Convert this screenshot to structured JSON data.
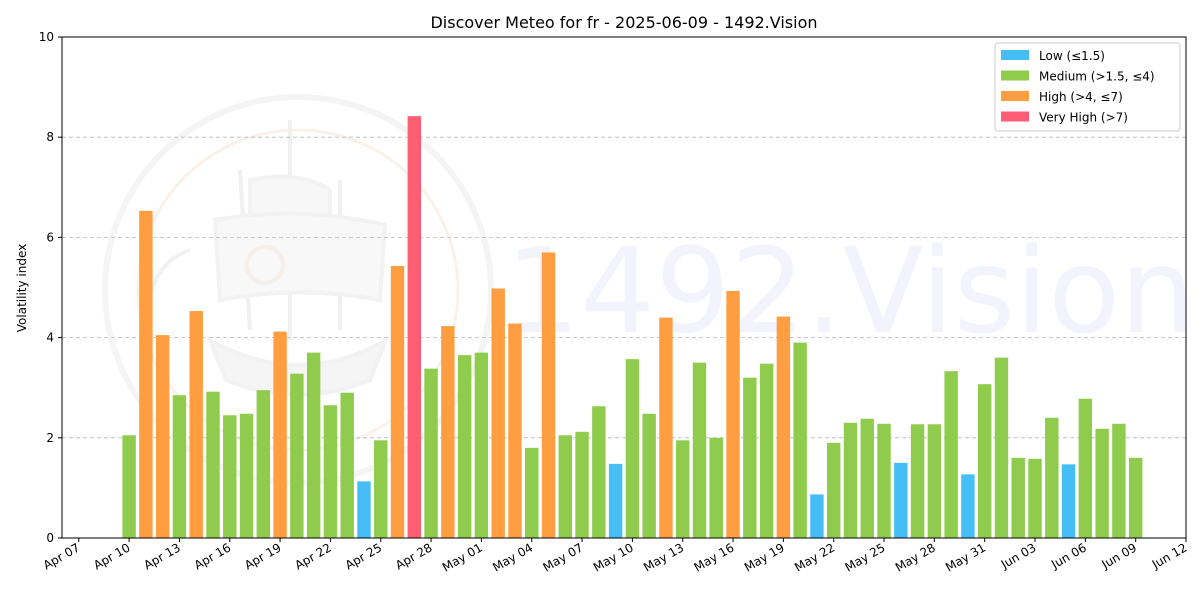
{
  "colors": {
    "low": "#45bdf5",
    "medium": "#8fcc4d",
    "high": "#ff9e40",
    "very_high": "#ff5e73",
    "grid": "#b8b8b8",
    "watermark": "#e9eafb"
  },
  "watermark": {
    "text": "1492.Vision",
    "logo": "ship-logo"
  },
  "chart_data": {
    "type": "bar",
    "title": "Discover Meteo for fr - 2025-06-09 - 1492.Vision",
    "xlabel": "",
    "ylabel": "Volatility index",
    "ylim": [
      0,
      10
    ],
    "yticks": [
      0,
      2,
      4,
      6,
      8,
      10
    ],
    "xlim": [
      "2025-04-06",
      "2025-06-12"
    ],
    "xticks": [
      "2025-04-07",
      "2025-04-10",
      "2025-04-13",
      "2025-04-16",
      "2025-04-19",
      "2025-04-22",
      "2025-04-25",
      "2025-04-28",
      "2025-05-01",
      "2025-05-04",
      "2025-05-07",
      "2025-05-10",
      "2025-05-13",
      "2025-05-16",
      "2025-05-19",
      "2025-05-22",
      "2025-05-25",
      "2025-05-28",
      "2025-05-31",
      "2025-06-03",
      "2025-06-06",
      "2025-06-09",
      "2025-06-12"
    ],
    "xtick_labels": [
      "Apr 07",
      "Apr 10",
      "Apr 13",
      "Apr 16",
      "Apr 19",
      "Apr 22",
      "Apr 25",
      "Apr 28",
      "May 01",
      "May 04",
      "May 07",
      "May 10",
      "May 13",
      "May 16",
      "May 19",
      "May 22",
      "May 25",
      "May 28",
      "May 31",
      "Jun 03",
      "Jun 06",
      "Jun 09",
      "Jun 12"
    ],
    "grid": true,
    "legend_position": "top-right",
    "legend": [
      {
        "key": "low",
        "label": "Low (≤1.5)"
      },
      {
        "key": "medium",
        "label": "Medium (>1.5, ≤4)"
      },
      {
        "key": "high",
        "label": "High (>4, ≤7)"
      },
      {
        "key": "very_high",
        "label": "Very High (>7)"
      }
    ],
    "dates": [
      "2025-04-10",
      "2025-04-11",
      "2025-04-12",
      "2025-04-13",
      "2025-04-14",
      "2025-04-15",
      "2025-04-16",
      "2025-04-17",
      "2025-04-18",
      "2025-04-19",
      "2025-04-20",
      "2025-04-21",
      "2025-04-22",
      "2025-04-23",
      "2025-04-24",
      "2025-04-25",
      "2025-04-26",
      "2025-04-27",
      "2025-04-28",
      "2025-04-29",
      "2025-04-30",
      "2025-05-01",
      "2025-05-02",
      "2025-05-03",
      "2025-05-04",
      "2025-05-05",
      "2025-05-06",
      "2025-05-07",
      "2025-05-08",
      "2025-05-09",
      "2025-05-10",
      "2025-05-11",
      "2025-05-12",
      "2025-05-13",
      "2025-05-14",
      "2025-05-15",
      "2025-05-16",
      "2025-05-17",
      "2025-05-18",
      "2025-05-19",
      "2025-05-20",
      "2025-05-21",
      "2025-05-22",
      "2025-05-23",
      "2025-05-24",
      "2025-05-25",
      "2025-05-26",
      "2025-05-27",
      "2025-05-28",
      "2025-05-29",
      "2025-05-30",
      "2025-05-31",
      "2025-06-01",
      "2025-06-02",
      "2025-06-03",
      "2025-06-04",
      "2025-06-05",
      "2025-06-06",
      "2025-06-07",
      "2025-06-08",
      "2025-06-09"
    ],
    "values": [
      2.05,
      6.53,
      4.05,
      2.85,
      4.53,
      2.92,
      2.45,
      2.48,
      2.95,
      4.12,
      3.28,
      3.7,
      2.65,
      2.9,
      1.13,
      1.95,
      5.43,
      8.42,
      3.38,
      4.23,
      3.65,
      3.7,
      4.98,
      4.28,
      1.8,
      5.7,
      2.05,
      2.12,
      2.63,
      1.48,
      3.57,
      2.48,
      4.4,
      1.95,
      3.5,
      2.0,
      4.93,
      3.2,
      3.48,
      4.42,
      3.9,
      0.87,
      1.9,
      2.3,
      2.38,
      2.28,
      1.5,
      2.27,
      2.27,
      3.33,
      1.27,
      3.07,
      3.6,
      1.6,
      1.58,
      2.4,
      1.47,
      2.78,
      2.18,
      2.28,
      1.6
    ],
    "categories": [
      "medium",
      "high",
      "high",
      "medium",
      "high",
      "medium",
      "medium",
      "medium",
      "medium",
      "high",
      "medium",
      "medium",
      "medium",
      "medium",
      "low",
      "medium",
      "high",
      "very_high",
      "medium",
      "high",
      "medium",
      "medium",
      "high",
      "high",
      "medium",
      "high",
      "medium",
      "medium",
      "medium",
      "low",
      "medium",
      "medium",
      "high",
      "medium",
      "medium",
      "medium",
      "high",
      "medium",
      "medium",
      "high",
      "medium",
      "low",
      "medium",
      "medium",
      "medium",
      "medium",
      "low",
      "medium",
      "medium",
      "medium",
      "low",
      "medium",
      "medium",
      "medium",
      "medium",
      "medium",
      "low",
      "medium",
      "medium",
      "medium",
      "medium"
    ]
  }
}
